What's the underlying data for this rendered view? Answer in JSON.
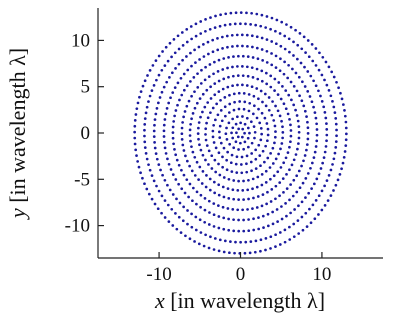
{
  "chart_data": {
    "type": "scatter",
    "title": "",
    "xlabel": {
      "var": "x",
      "text": " [in wavelength λ]"
    },
    "ylabel": {
      "var": "y",
      "text": " [in wavelength λ]"
    },
    "xlim": [
      -17.5,
      17.5
    ],
    "ylim": [
      -13.5,
      13.5
    ],
    "xticks": [
      -10,
      0,
      10
    ],
    "yticks": [
      -10,
      -5,
      0,
      5,
      10
    ],
    "grid": false,
    "point_color": "#1a1a9e",
    "series": [
      {
        "distribution": "spiral-arranged points filling a circular aperture",
        "rings": [
          {
            "radius": 13.0,
            "count": 128
          },
          {
            "radius": 11.8,
            "count": 118
          },
          {
            "radius": 10.6,
            "count": 108
          },
          {
            "radius": 9.4,
            "count": 96
          },
          {
            "radius": 8.3,
            "count": 86
          },
          {
            "radius": 7.2,
            "count": 74
          },
          {
            "radius": 6.2,
            "count": 64
          },
          {
            "radius": 5.2,
            "count": 54
          },
          {
            "radius": 4.3,
            "count": 44
          },
          {
            "radius": 3.4,
            "count": 34
          },
          {
            "radius": 2.6,
            "count": 26
          },
          {
            "radius": 1.8,
            "count": 18
          },
          {
            "radius": 1.1,
            "count": 12
          },
          {
            "radius": 0.5,
            "count": 6
          }
        ],
        "spiral_twist_rad": 2.3
      }
    ]
  }
}
